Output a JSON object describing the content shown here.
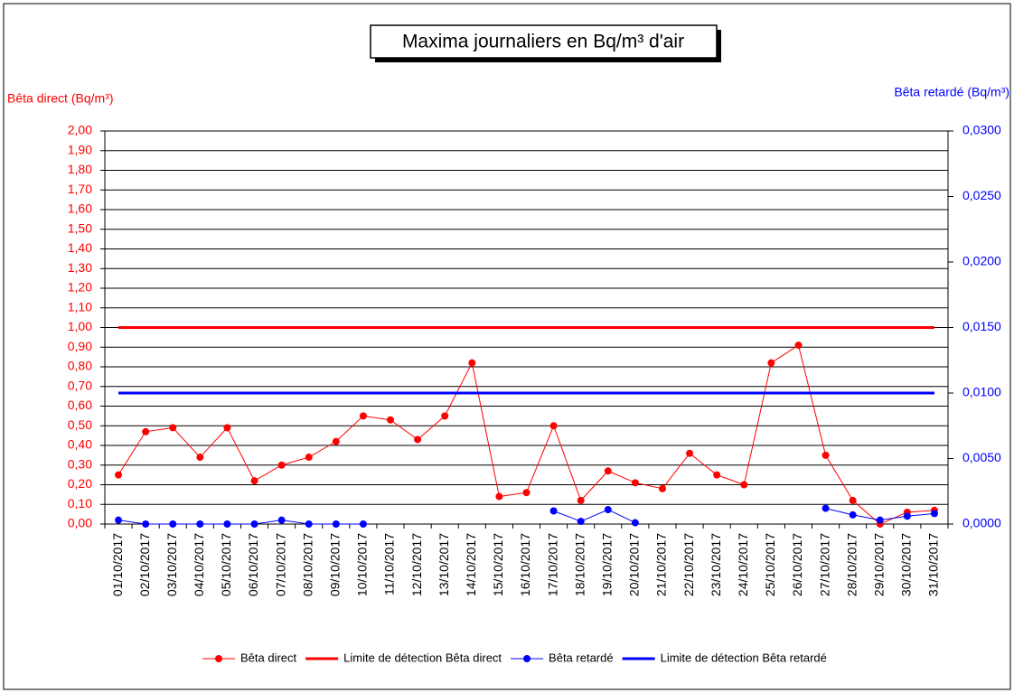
{
  "chart_data": {
    "type": "line",
    "title": "Maxima journaliers en Bq/m³ d'air",
    "ylabel": "Bêta direct (Bq/m³)",
    "y2label": "Bêta retardé (Bq/m³)",
    "categories": [
      "01/10/2017",
      "02/10/2017",
      "03/10/2017",
      "04/10/2017",
      "05/10/2017",
      "06/10/2017",
      "07/10/2017",
      "08/10/2017",
      "09/10/2017",
      "10/10/2017",
      "11/10/2017",
      "12/10/2017",
      "13/10/2017",
      "14/10/2017",
      "15/10/2017",
      "16/10/2017",
      "17/10/2017",
      "18/10/2017",
      "19/10/2017",
      "20/10/2017",
      "21/10/2017",
      "22/10/2017",
      "23/10/2017",
      "24/10/2017",
      "25/10/2017",
      "26/10/2017",
      "27/10/2017",
      "28/10/2017",
      "29/10/2017",
      "30/10/2017",
      "31/10/2017"
    ],
    "series": [
      {
        "name": "Bêta direct",
        "color": "#ff0000",
        "markers": true,
        "values": [
          0.25,
          0.47,
          0.49,
          0.34,
          0.49,
          0.22,
          0.3,
          0.34,
          0.42,
          0.55,
          0.53,
          0.43,
          0.55,
          0.82,
          0.14,
          0.16,
          0.5,
          0.12,
          0.27,
          0.21,
          0.18,
          0.36,
          0.25,
          0.2,
          0.82,
          0.91,
          0.35,
          0.12,
          0.0,
          0.06,
          0.07
        ]
      },
      {
        "name": "Limite de détection Bêta direct",
        "color": "#ff0000",
        "markers": false,
        "values": [
          1,
          1,
          1,
          1,
          1,
          1,
          1,
          1,
          1,
          1,
          1,
          1,
          1,
          1,
          1,
          1,
          1,
          1,
          1,
          1,
          1,
          1,
          1,
          1,
          1,
          1,
          1,
          1,
          1,
          1,
          1
        ]
      },
      {
        "name": "Bêta retardé",
        "color": "#0000ff",
        "markers": true,
        "axis": "y2",
        "values": [
          0.0003,
          0,
          0,
          0,
          0,
          0,
          0.0003,
          0,
          0,
          0,
          null,
          null,
          null,
          null,
          null,
          null,
          0.001,
          0.0002,
          0.0011,
          0.0001,
          null,
          null,
          null,
          null,
          null,
          null,
          0.0012,
          0.0007,
          0.0003,
          0.0006,
          0.0008
        ]
      },
      {
        "name": "Limite de détection Bêta retardé",
        "color": "#0000ff",
        "markers": false,
        "axis": "y2",
        "values": [
          0.01,
          0.01,
          0.01,
          0.01,
          0.01,
          0.01,
          0.01,
          0.01,
          0.01,
          0.01,
          0.01,
          0.01,
          0.01,
          0.01,
          0.01,
          0.01,
          0.01,
          0.01,
          0.01,
          0.01,
          0.01,
          0.01,
          0.01,
          0.01,
          0.01,
          0.01,
          0.01,
          0.01,
          0.01,
          0.01,
          0.01
        ]
      }
    ],
    "ylim": [
      0,
      2
    ],
    "yticks": [
      {
        "value": 0,
        "label": "0,00"
      },
      {
        "value": 0.1,
        "label": "0,10"
      },
      {
        "value": 0.2,
        "label": "0,20"
      },
      {
        "value": 0.3,
        "label": "0,30"
      },
      {
        "value": 0.4,
        "label": "0,40"
      },
      {
        "value": 0.5,
        "label": "0,50"
      },
      {
        "value": 0.6,
        "label": "0,60"
      },
      {
        "value": 0.7,
        "label": "0,70"
      },
      {
        "value": 0.8,
        "label": "0,80"
      },
      {
        "value": 0.9,
        "label": "0,90"
      },
      {
        "value": 1,
        "label": "1,00"
      },
      {
        "value": 1.1,
        "label": "1,10"
      },
      {
        "value": 1.2,
        "label": "1,20"
      },
      {
        "value": 1.3,
        "label": "1,30"
      },
      {
        "value": 1.4,
        "label": "1,40"
      },
      {
        "value": 1.5,
        "label": "1,50"
      },
      {
        "value": 1.6,
        "label": "1,60"
      },
      {
        "value": 1.7,
        "label": "1,70"
      },
      {
        "value": 1.8,
        "label": "1,80"
      },
      {
        "value": 1.9,
        "label": "1,90"
      },
      {
        "value": 2,
        "label": "2,00"
      }
    ],
    "y2lim": [
      0,
      0.03
    ],
    "y2ticks": [
      {
        "value": 0,
        "label": "0,0000"
      },
      {
        "value": 0.005,
        "label": "0,0050"
      },
      {
        "value": 0.01,
        "label": "0,0100"
      },
      {
        "value": 0.015,
        "label": "0,0150"
      },
      {
        "value": 0.02,
        "label": "0,0200"
      },
      {
        "value": 0.025,
        "label": "0,0250"
      },
      {
        "value": 0.03,
        "label": "0,0300"
      }
    ],
    "grid": true,
    "legend": "bottom"
  }
}
